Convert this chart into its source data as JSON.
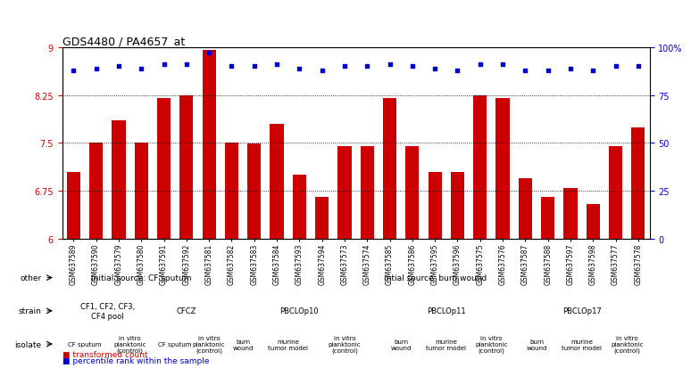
{
  "title": "GDS4480 / PA4657_at",
  "samples": [
    "GSM637589",
    "GSM637590",
    "GSM637579",
    "GSM637580",
    "GSM637591",
    "GSM637592",
    "GSM637581",
    "GSM637582",
    "GSM637583",
    "GSM637584",
    "GSM637593",
    "GSM637594",
    "GSM637573",
    "GSM637574",
    "GSM637585",
    "GSM637586",
    "GSM637595",
    "GSM637596",
    "GSM637575",
    "GSM637576",
    "GSM637587",
    "GSM637588",
    "GSM637597",
    "GSM637598",
    "GSM637577",
    "GSM637578"
  ],
  "bar_values": [
    7.05,
    7.5,
    7.85,
    7.5,
    8.2,
    8.25,
    8.95,
    7.5,
    7.49,
    7.8,
    7.0,
    6.65,
    7.45,
    7.45,
    8.2,
    7.45,
    7.05,
    7.05,
    8.25,
    8.2,
    6.95,
    6.65,
    6.8,
    6.55,
    7.45,
    7.75
  ],
  "dot_values": [
    88,
    89,
    90,
    89,
    91,
    91,
    97,
    90,
    90,
    91,
    89,
    88,
    90,
    90,
    91,
    90,
    89,
    88,
    91,
    91,
    88,
    88,
    89,
    88,
    90,
    90
  ],
  "ymin": 6.0,
  "ymax": 9.0,
  "yticks": [
    6.0,
    6.75,
    7.5,
    8.25,
    9.0
  ],
  "ytick_labels": [
    "6",
    "6.75",
    "7.5",
    "8.25",
    "9"
  ],
  "y2ticks": [
    0,
    25,
    50,
    75,
    100
  ],
  "y2tick_labels": [
    "0",
    "25",
    "50",
    "75",
    "100%"
  ],
  "hlines": [
    6.75,
    7.5,
    8.25
  ],
  "bar_color": "#cc0000",
  "dot_color": "#0000cc",
  "bg_color": "#ffffff",
  "other_row": [
    {
      "label": "initial source: CF sputum",
      "start": 0,
      "end": 6,
      "color": "#90ee90"
    },
    {
      "label": "intial source: burn wound",
      "start": 7,
      "end": 25,
      "color": "#66cc66"
    }
  ],
  "strain_row": [
    {
      "label": "CF1, CF2, CF3,\nCF4 pool",
      "start": 0,
      "end": 3,
      "color": "#e8e8ff"
    },
    {
      "label": "CFCZ",
      "start": 4,
      "end": 6,
      "color": "#b8b8e8"
    },
    {
      "label": "PBCLOp10",
      "start": 7,
      "end": 13,
      "color": "#b8b8ee"
    },
    {
      "label": "PBCLOp11",
      "start": 14,
      "end": 19,
      "color": "#9999cc"
    },
    {
      "label": "PBCLOp17",
      "start": 20,
      "end": 25,
      "color": "#b8b8ee"
    }
  ],
  "isolate_row": [
    {
      "label": "CF sputum",
      "start": 0,
      "end": 1,
      "color": "#ffaaaa"
    },
    {
      "label": "in vitro\nplanktonic\n(control)",
      "start": 2,
      "end": 3,
      "color": "#ffcccc"
    },
    {
      "label": "CF sputum",
      "start": 4,
      "end": 5,
      "color": "#ffaaaa"
    },
    {
      "label": "in vitro\nplanktonic\n(control)",
      "start": 6,
      "end": 6,
      "color": "#ffcccc"
    },
    {
      "label": "burn\nwound",
      "start": 7,
      "end": 8,
      "color": "#ffaaaa"
    },
    {
      "label": "murine\ntumor model",
      "start": 9,
      "end": 10,
      "color": "#ffcccc"
    },
    {
      "label": "in vitro\nplanktonic\n(control)",
      "start": 11,
      "end": 13,
      "color": "#ffaaaa"
    },
    {
      "label": "burn\nwound",
      "start": 14,
      "end": 15,
      "color": "#ffaaaa"
    },
    {
      "label": "murine\ntumor model",
      "start": 16,
      "end": 17,
      "color": "#ffcccc"
    },
    {
      "label": "in vitro\nplanktonic\n(control)",
      "start": 18,
      "end": 19,
      "color": "#ffaaaa"
    },
    {
      "label": "burn\nwound",
      "start": 20,
      "end": 21,
      "color": "#ffaaaa"
    },
    {
      "label": "murine\ntumor model",
      "start": 22,
      "end": 23,
      "color": "#ffcccc"
    },
    {
      "label": "in vitro\nplanktonic\n(control)",
      "start": 24,
      "end": 25,
      "color": "#ffaaaa"
    }
  ],
  "legend_bar_label": "transformed count",
  "legend_dot_label": "percentile rank within the sample"
}
